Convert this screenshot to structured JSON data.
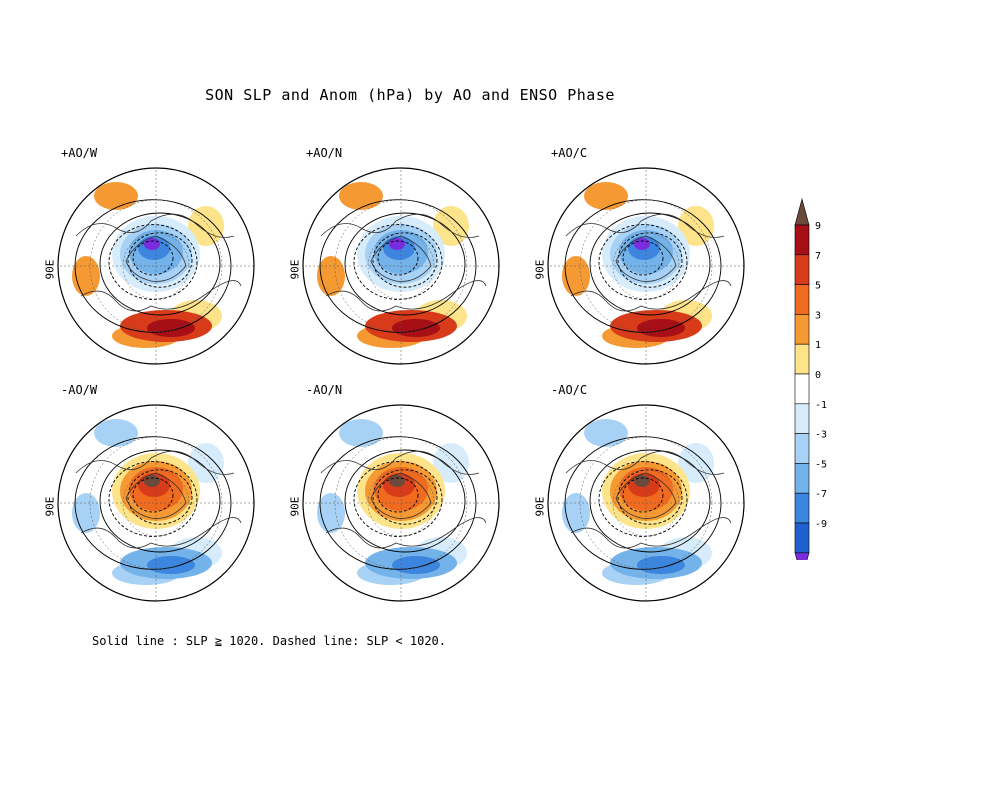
{
  "title": "SON SLP and Anom (hPa) by AO and ENSO Phase",
  "panels": [
    {
      "label": "+AO/W",
      "lon_label": "90E",
      "pole_anom": "low",
      "accent": "#d73b1a"
    },
    {
      "label": "+AO/N",
      "lon_label": "90E",
      "pole_anom": "low",
      "accent": "#f59a33"
    },
    {
      "label": "+AO/C",
      "lon_label": "90E",
      "pole_anom": "low",
      "accent": "#fbc24a"
    },
    {
      "label": "-AO/W",
      "lon_label": "90E",
      "pole_anom": "high",
      "accent": "#74b2ea"
    },
    {
      "label": "-AO/N",
      "lon_label": "90E",
      "pole_anom": "high",
      "accent": "#a7d1f5"
    },
    {
      "label": "-AO/C",
      "lon_label": "90E",
      "pole_anom": "high",
      "accent": "#74b2ea"
    }
  ],
  "colorbar": {
    "labels": [
      "9",
      "7",
      "5",
      "3",
      "1",
      "0",
      "-1",
      "-3",
      "-5",
      "-7",
      "-9"
    ],
    "colors": [
      "#6b4a3c",
      "#a50f15",
      "#d73b1a",
      "#f06a1f",
      "#f59a33",
      "#fde38a",
      "#ffffff",
      "#d6ecfb",
      "#a7d1f5",
      "#74b2ea",
      "#3d86e0",
      "#1f5fcf",
      "#7b2be0"
    ]
  },
  "footnote": "Solid line : SLP ≧ 1020.  Dashed line: SLP < 1020."
}
